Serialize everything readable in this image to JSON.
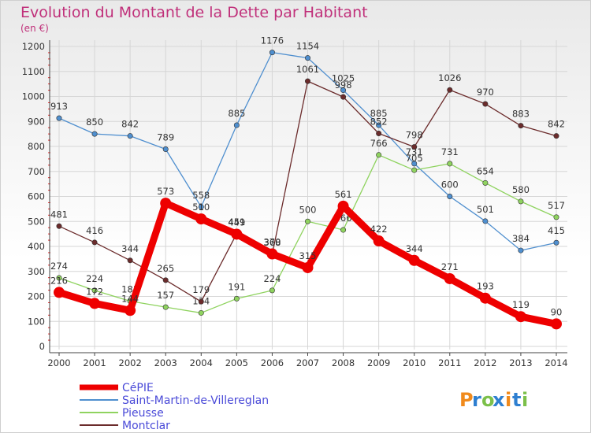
{
  "chart_data": {
    "type": "line",
    "title": "Evolution du Montant de la Dette par Habitant",
    "subtitle": "(en €)",
    "xlabel": "",
    "ylabel": "",
    "categories": [
      "2000",
      "2001",
      "2002",
      "2003",
      "2004",
      "2005",
      "2006",
      "2007",
      "2008",
      "2009",
      "2010",
      "2011",
      "2012",
      "2013",
      "2014"
    ],
    "ylim": [
      0,
      1200
    ],
    "yticks": [
      0,
      100,
      200,
      300,
      400,
      500,
      600,
      700,
      800,
      900,
      1000,
      1100,
      1200
    ],
    "grid": true,
    "legend_position": "bottom-left",
    "series": [
      {
        "name": "CéPIE",
        "color": "#ee0000",
        "values": [
          216,
          172,
          144,
          573,
          510,
          449,
          370,
          315,
          561,
          422,
          344,
          271,
          193,
          119,
          90
        ]
      },
      {
        "name": "Saint-Martin-de-Villereglan",
        "color": "#4f8fcf",
        "values": [
          913,
          850,
          842,
          789,
          558,
          885,
          1176,
          1154,
          1025,
          885,
          731,
          600,
          501,
          384,
          415
        ]
      },
      {
        "name": "Pieusse",
        "color": "#8fd35f",
        "values": [
          274,
          224,
          181,
          157,
          134,
          191,
          224,
          500,
          466,
          766,
          705,
          731,
          654,
          580,
          517
        ]
      },
      {
        "name": "Montclar",
        "color": "#6b2b2b",
        "values": [
          481,
          416,
          344,
          265,
          179,
          451,
          368,
          1061,
          998,
          852,
          798,
          1026,
          970,
          883,
          842
        ]
      }
    ]
  },
  "brand": {
    "logo_text": "Proxiti"
  }
}
